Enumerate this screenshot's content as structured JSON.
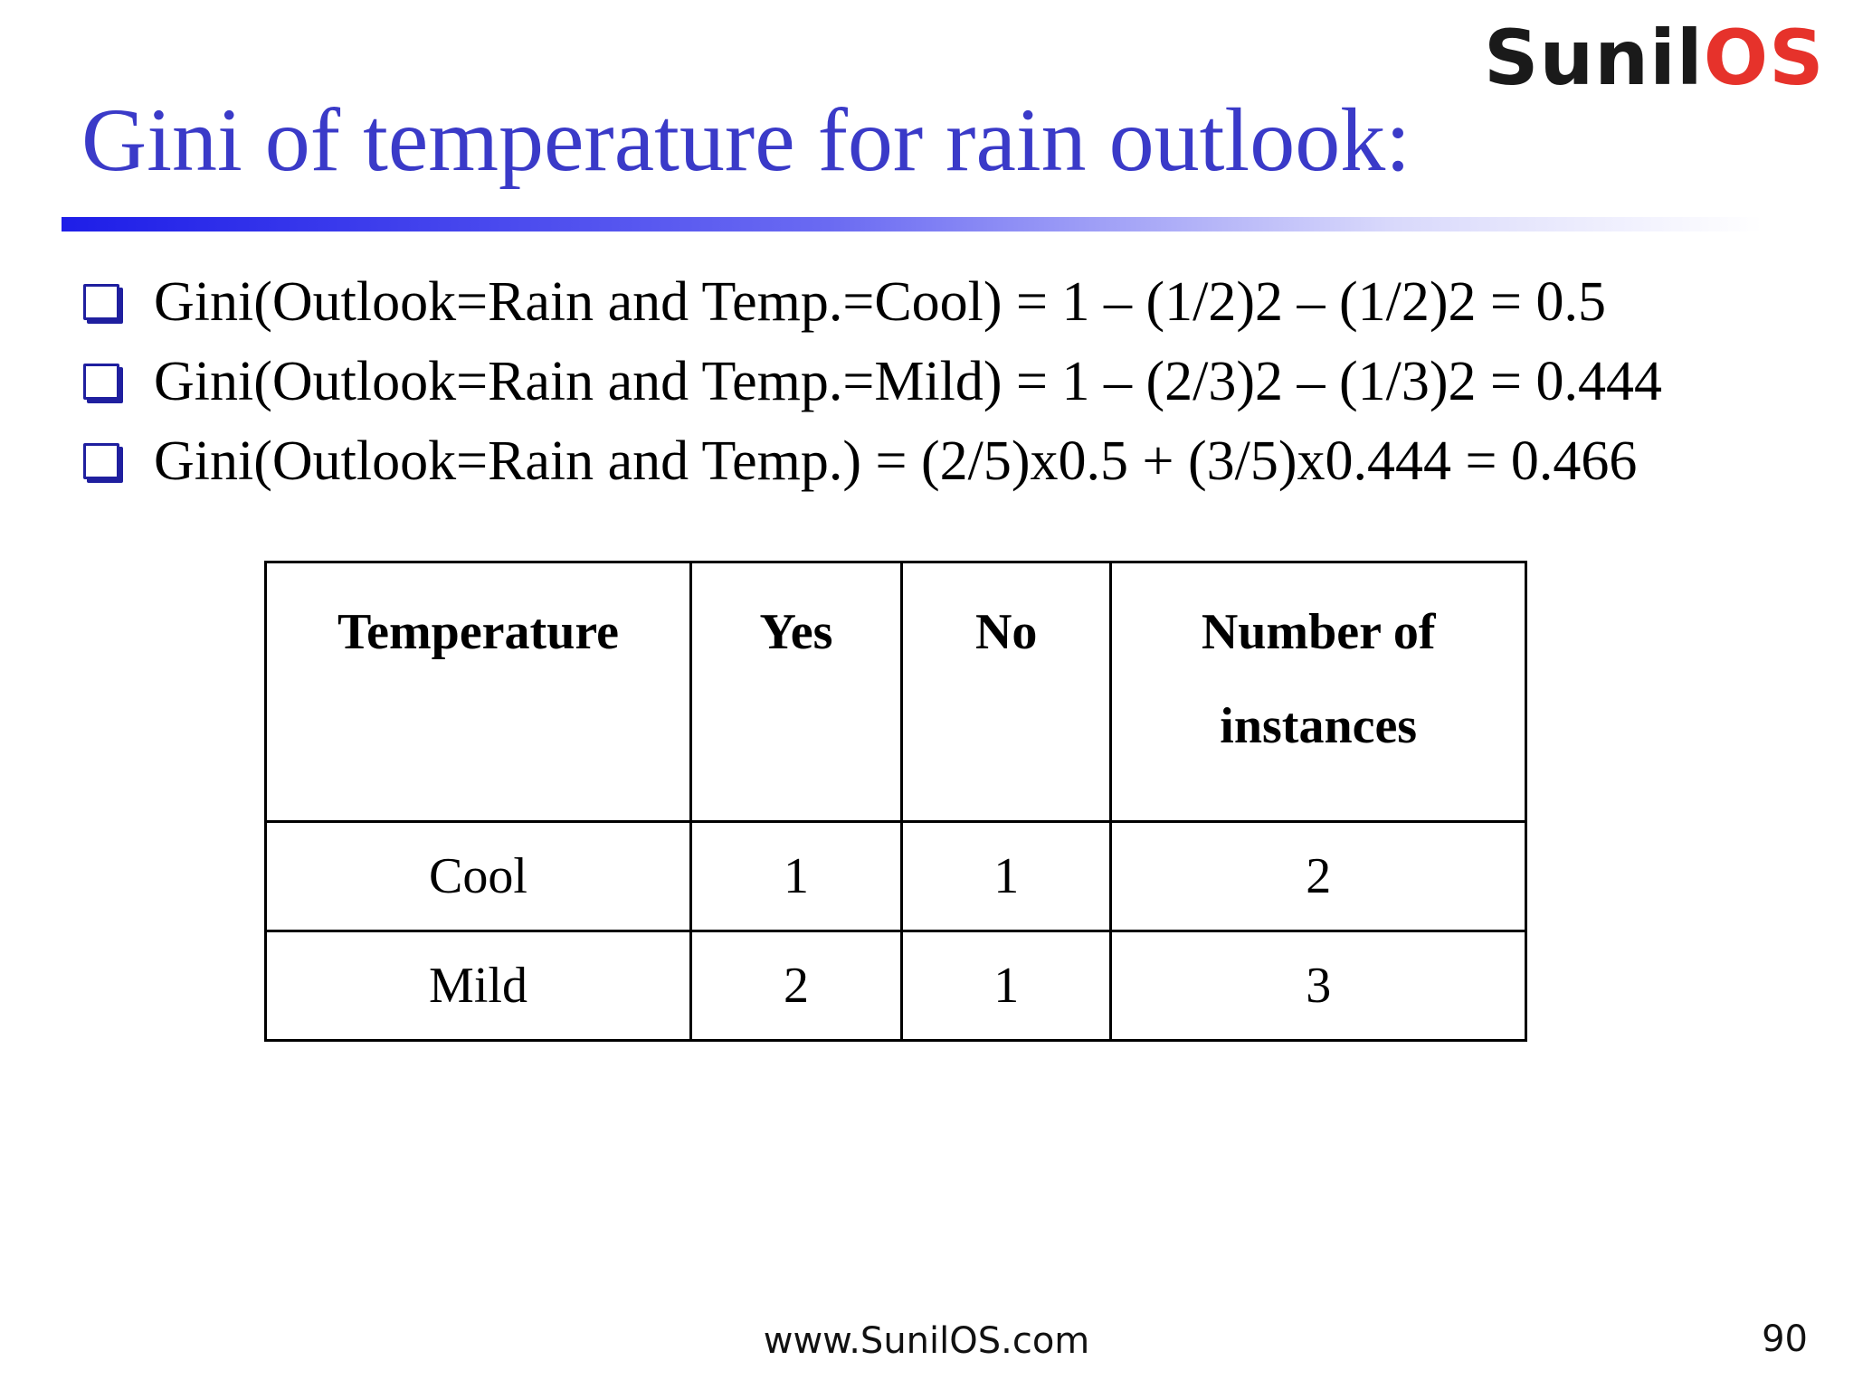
{
  "logo": {
    "part1": "Sunil",
    "part2": "OS"
  },
  "title": "Gini of temperature for rain outlook:",
  "bullets": [
    "Gini(Outlook=Rain and Temp.=Cool) = 1 – (1/2)2 – (1/2)2 = 0.5",
    "Gini(Outlook=Rain and Temp.=Mild) = 1 – (2/3)2 – (1/3)2 = 0.444",
    "Gini(Outlook=Rain and Temp.) = (2/5)x0.5 + (3/5)x0.444 = 0.466"
  ],
  "table": {
    "headers": [
      "Temperature",
      "Yes",
      "No",
      "Number of instances"
    ],
    "rows": [
      [
        "Cool",
        "1",
        "1",
        "2"
      ],
      [
        "Mild",
        "2",
        "1",
        "3"
      ]
    ]
  },
  "footer": {
    "url": "www.SunilOS.com",
    "page_number": "90"
  }
}
